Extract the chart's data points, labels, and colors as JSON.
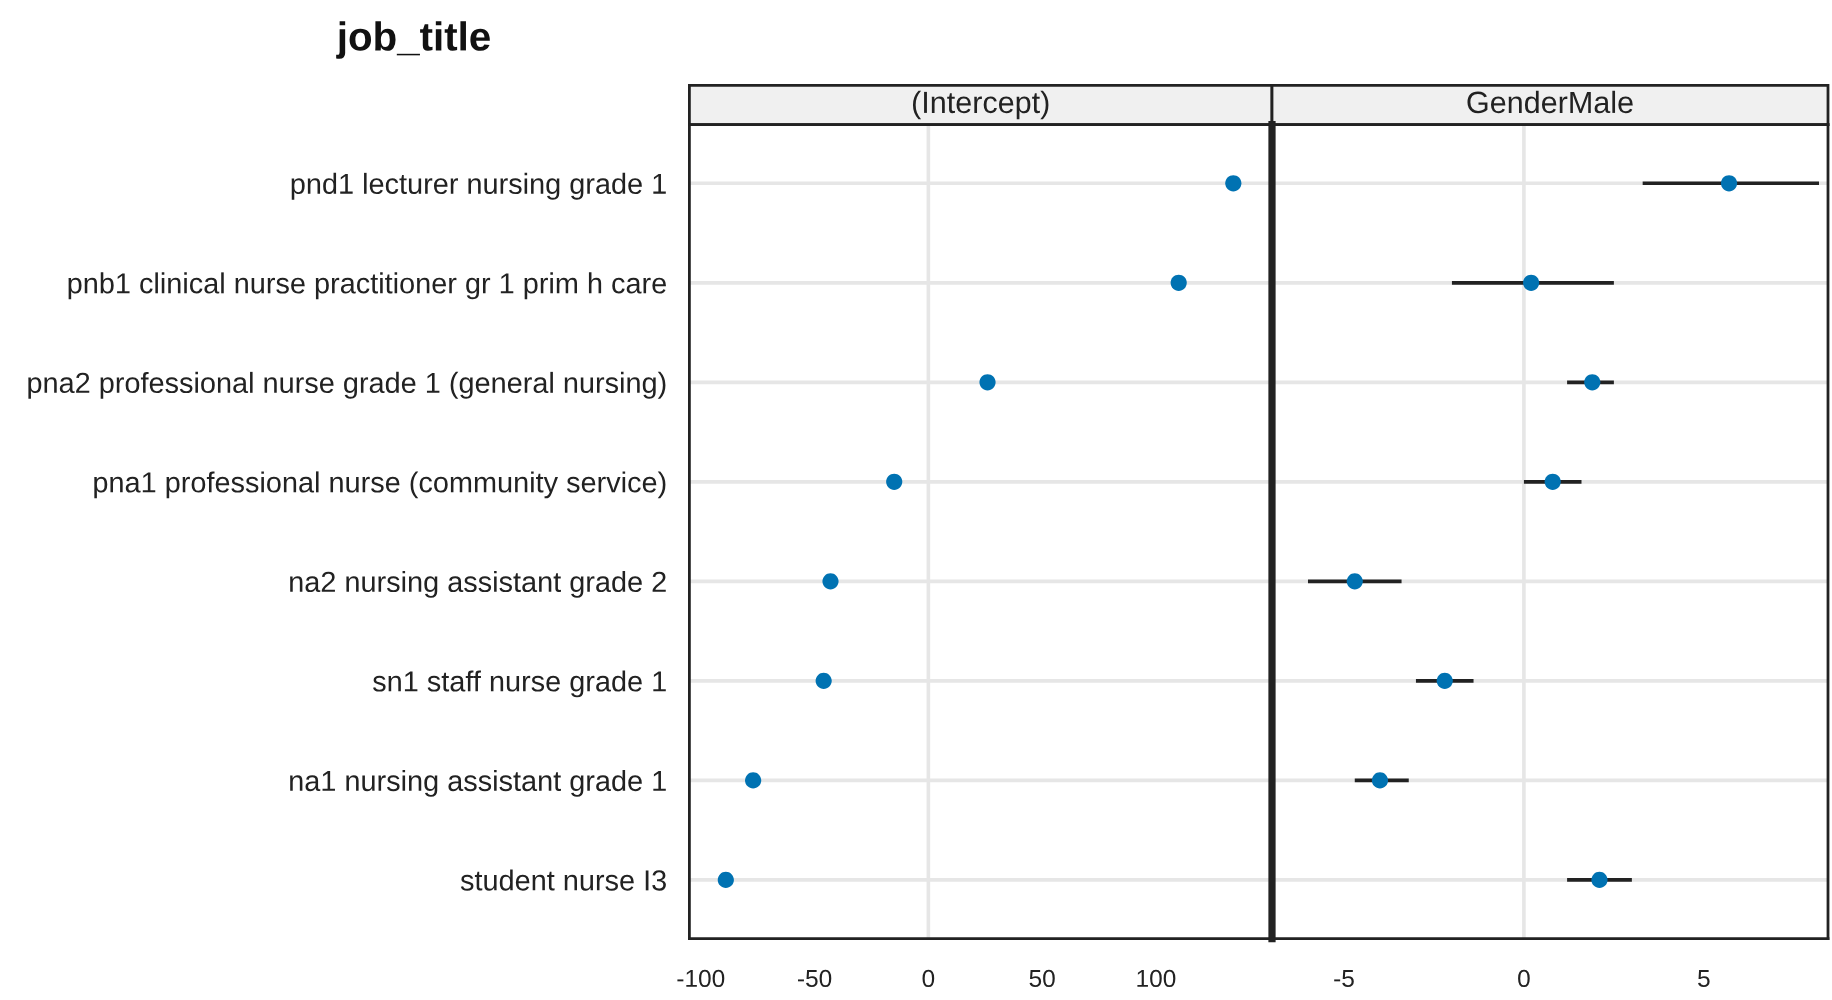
{
  "chart_data": [
    {
      "type": "scatter",
      "orientation": "horizontal",
      "title": "job_title",
      "subtitle": "(Intercept)",
      "categories": [
        "pnd1 lecturer nursing grade 1",
        "pnb1 clinical nurse practitioner gr 1 prim h care",
        "pna2 professional nurse grade 1 (general nursing)",
        "pna1 professional nurse (community service)",
        "na2 nursing assistant grade 2",
        "sn1 staff nurse grade 1",
        "na1 nursing assistant grade 1",
        "student nurse I3"
      ],
      "values": [
        134,
        110,
        26,
        -15,
        -43,
        -46,
        -77,
        -89
      ],
      "color": "#0072b2",
      "marker": "circle",
      "xlim": [
        -105,
        151
      ],
      "xticks": [
        -100,
        -50,
        0,
        50,
        100
      ],
      "grid": "y",
      "ref_lines": [
        {
          "axis": "x",
          "value": 0,
          "color": "#e6e6e6"
        }
      ]
    },
    {
      "type": "scatter",
      "orientation": "horizontal",
      "subtitle": "GenderMale",
      "categories": [
        null,
        null,
        null,
        null,
        null,
        null,
        null,
        null
      ],
      "values": [
        5.7,
        0.2,
        1.9,
        0.8,
        -4.7,
        -2.2,
        -4.0,
        2.1
      ],
      "color": "#0072b2",
      "marker": "circle",
      "errors": [
        [
          3.3,
          8.2
        ],
        [
          -2.0,
          2.5
        ],
        [
          1.2,
          2.5
        ],
        [
          0.0,
          1.6
        ],
        [
          -6.0,
          -3.4
        ],
        [
          -3.0,
          -1.4
        ],
        [
          -4.7,
          -3.2
        ],
        [
          1.2,
          3.0
        ]
      ],
      "xlim": [
        -7,
        8.45
      ],
      "xticks": [
        -5,
        0,
        5
      ],
      "grid": "y",
      "ref_lines": [
        {
          "axis": "x",
          "value": 0,
          "color": "#e6e6e6"
        }
      ]
    }
  ]
}
